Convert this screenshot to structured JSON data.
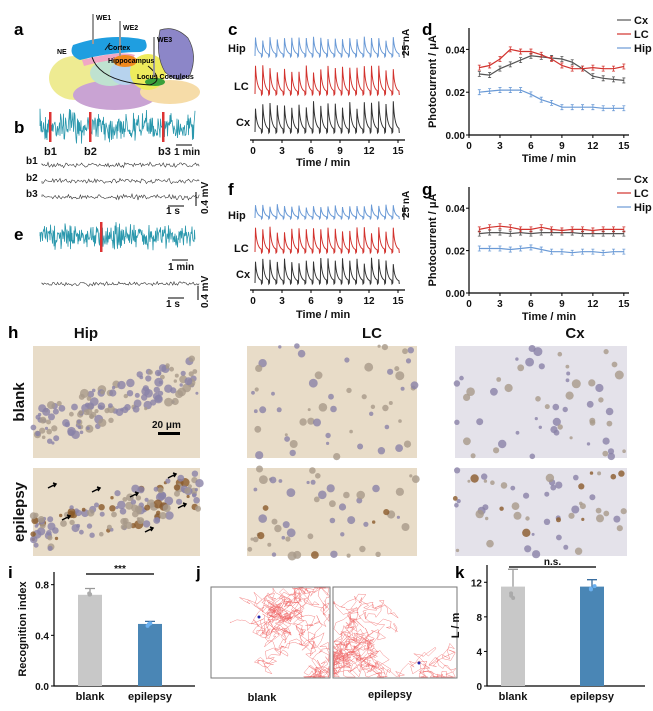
{
  "panel_labels": {
    "a": "a",
    "b": "b",
    "c": "c",
    "d": "d",
    "e": "e",
    "f": "f",
    "g": "g",
    "h": "h",
    "i": "i",
    "j": "j",
    "k": "k"
  },
  "brain": {
    "we1": "WE1",
    "we2": "WE2",
    "we3": "WE3",
    "ne": "NE",
    "cortex": "Cortex",
    "hippocampus": "Hippocampus",
    "lc": "Locus Coeruleus"
  },
  "eeg": {
    "b1": "b1",
    "b2": "b2",
    "b3": "b3",
    "min": "1 min",
    "sec": "1 s",
    "mv": "0.4 mV"
  },
  "traces": {
    "hip": "Hip",
    "lc": "LC",
    "cx": "Cx",
    "scale": "25 nA",
    "xlabel": "Time / min",
    "ticks": [
      "0",
      "3",
      "6",
      "9",
      "12",
      "15"
    ]
  },
  "histology": {
    "cols": [
      "Hip",
      "LC",
      "Cx"
    ],
    "rows": [
      "blank",
      "epilepsy"
    ],
    "scale": "20 μm"
  },
  "tracking": {
    "labels": [
      "blank",
      "epilepsy"
    ]
  },
  "colors": {
    "cx": "#555555",
    "lc": "#d2322d",
    "hip": "#6a9ad6",
    "eeg": "#2b98ad",
    "bar_blank": "#c8c8c8",
    "bar_epi": "#4a86b5"
  },
  "chart_data": [
    {
      "id": "d",
      "type": "line",
      "xlabel": "Time / min",
      "ylabel": "Photocurrent / μA",
      "xlim": [
        0,
        15.5
      ],
      "ylim": [
        0,
        0.05
      ],
      "xticks": [
        0,
        3,
        6,
        9,
        12,
        15
      ],
      "yticks": [
        0,
        0.02,
        0.04
      ],
      "ytick_labels": [
        "0.00",
        "0.02",
        "0.04"
      ],
      "legend": "top-right",
      "x": [
        1,
        2,
        3,
        4,
        5,
        6,
        7,
        8,
        9,
        10,
        11,
        12,
        13,
        14,
        15
      ],
      "series": [
        {
          "name": "Cx",
          "color": "#555555",
          "values": [
            0.0285,
            0.028,
            0.031,
            0.033,
            0.035,
            0.037,
            0.0365,
            0.036,
            0.0355,
            0.034,
            0.031,
            0.0275,
            0.0265,
            0.026,
            0.0255
          ]
        },
        {
          "name": "LC",
          "color": "#d2322d",
          "values": [
            0.0315,
            0.0325,
            0.0355,
            0.04,
            0.039,
            0.039,
            0.0375,
            0.0355,
            0.0325,
            0.031,
            0.031,
            0.0315,
            0.031,
            0.031,
            0.032
          ]
        },
        {
          "name": "Hip",
          "color": "#6a9ad6",
          "values": [
            0.02,
            0.0205,
            0.021,
            0.021,
            0.021,
            0.019,
            0.0165,
            0.015,
            0.013,
            0.013,
            0.013,
            0.013,
            0.0125,
            0.0125,
            0.0125
          ]
        }
      ]
    },
    {
      "id": "g",
      "type": "line",
      "xlabel": "Time / min",
      "ylabel": "Photocurrent / μA",
      "xlim": [
        0,
        15.5
      ],
      "ylim": [
        0,
        0.05
      ],
      "xticks": [
        0,
        3,
        6,
        9,
        12,
        15
      ],
      "yticks": [
        0,
        0.02,
        0.04
      ],
      "ytick_labels": [
        "0.00",
        "0.02",
        "0.04"
      ],
      "legend": "top-right",
      "x": [
        1,
        2,
        3,
        4,
        5,
        6,
        7,
        8,
        9,
        10,
        11,
        12,
        13,
        14,
        15
      ],
      "series": [
        {
          "name": "Cx",
          "color": "#555555",
          "values": [
            0.028,
            0.0285,
            0.0285,
            0.028,
            0.0285,
            0.028,
            0.0285,
            0.0285,
            0.0285,
            0.0285,
            0.028,
            0.028,
            0.028,
            0.028,
            0.028
          ]
        },
        {
          "name": "LC",
          "color": "#d2322d",
          "values": [
            0.03,
            0.031,
            0.0315,
            0.031,
            0.03,
            0.03,
            0.031,
            0.03,
            0.0295,
            0.03,
            0.03,
            0.0295,
            0.03,
            0.03,
            0.03
          ]
        },
        {
          "name": "Hip",
          "color": "#6a9ad6",
          "values": [
            0.021,
            0.021,
            0.021,
            0.0205,
            0.021,
            0.0215,
            0.0205,
            0.0195,
            0.0195,
            0.019,
            0.0195,
            0.0195,
            0.019,
            0.0195,
            0.0195
          ]
        }
      ]
    },
    {
      "id": "i",
      "type": "bar",
      "ylabel": "Recognition index",
      "categories": [
        "blank",
        "epilepsy"
      ],
      "values": [
        0.72,
        0.49
      ],
      "errors": [
        0.05,
        0.02
      ],
      "ylim": [
        0,
        0.9
      ],
      "yticks": [
        0,
        0.4,
        0.8
      ],
      "ytick_labels": [
        "0.0",
        "0.4",
        "0.8"
      ],
      "annotation": "***"
    },
    {
      "id": "k",
      "type": "bar",
      "ylabel": "L / m",
      "categories": [
        "blank",
        "epilepsy"
      ],
      "values": [
        11.5,
        11.5
      ],
      "errors": [
        2.0,
        0.8
      ],
      "ylim": [
        0,
        14
      ],
      "yticks": [
        0,
        4,
        8,
        12
      ],
      "ytick_labels": [
        "0",
        "4",
        "8",
        "12"
      ],
      "annotation": "n.s."
    }
  ]
}
